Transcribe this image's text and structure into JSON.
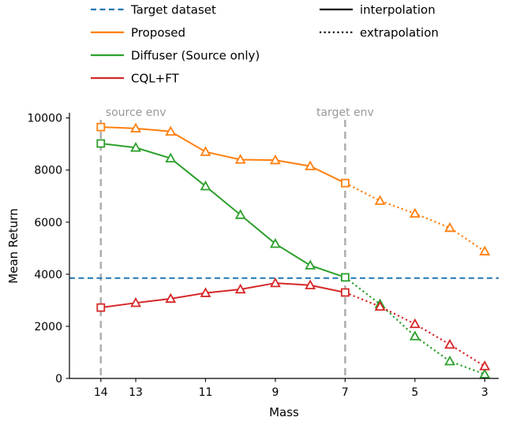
{
  "chart_data": {
    "type": "line",
    "title": "",
    "xlabel": "Mass",
    "ylabel": "Mean Return",
    "x_axis_reversed": true,
    "grid": false,
    "xlim": [
      14.9,
      2.6
    ],
    "ylim": [
      0,
      10200
    ],
    "x_ticks": [
      14,
      13,
      11,
      9,
      7,
      5,
      3
    ],
    "y_ticks": [
      0,
      2000,
      4000,
      6000,
      8000,
      10000
    ],
    "x": [
      14,
      13,
      12,
      11,
      10,
      9,
      8,
      7,
      6,
      5,
      4,
      3
    ],
    "interpolation_range": [
      14,
      7
    ],
    "square_marker_x": [
      14,
      7
    ],
    "series": [
      {
        "name": "Proposed",
        "color": "#ff7f0e",
        "values": [
          9650,
          9600,
          9480,
          8700,
          8400,
          8380,
          8150,
          7500,
          6820,
          6330,
          5780,
          4880
        ]
      },
      {
        "name": "Diffuser (Source only)",
        "color": "#2ca02c",
        "values": [
          9020,
          8860,
          8450,
          7380,
          6280,
          5170,
          4340,
          3880,
          2850,
          1620,
          660,
          160
        ]
      },
      {
        "name": "CQL+FT",
        "color": "#d62728",
        "values": [
          2720,
          2900,
          3060,
          3280,
          3420,
          3660,
          3580,
          3300,
          2760,
          2090,
          1300,
          470
        ]
      }
    ],
    "reference_line": {
      "name": "Target dataset",
      "color": "#1f77b4",
      "value": 3850,
      "style": "dashed"
    },
    "annotations": [
      {
        "label": "source env",
        "x": 14,
        "color": "#999999",
        "align": "left"
      },
      {
        "label": "target env",
        "x": 7,
        "color": "#999999",
        "align": "center"
      }
    ],
    "legend": {
      "position": "top",
      "left_items": [
        {
          "label": "Target dataset",
          "color": "#1f77b4",
          "style": "dashed"
        },
        {
          "label": "Proposed",
          "color": "#ff7f0e",
          "style": "solid"
        },
        {
          "label": "Diffuser (Source only)",
          "color": "#2ca02c",
          "style": "solid"
        },
        {
          "label": "CQL+FT",
          "color": "#d62728",
          "style": "solid"
        }
      ],
      "right_items": [
        {
          "label": "interpolation",
          "color": "#000000",
          "style": "solid"
        },
        {
          "label": "extrapolation",
          "color": "#000000",
          "style": "dotted"
        }
      ]
    }
  }
}
